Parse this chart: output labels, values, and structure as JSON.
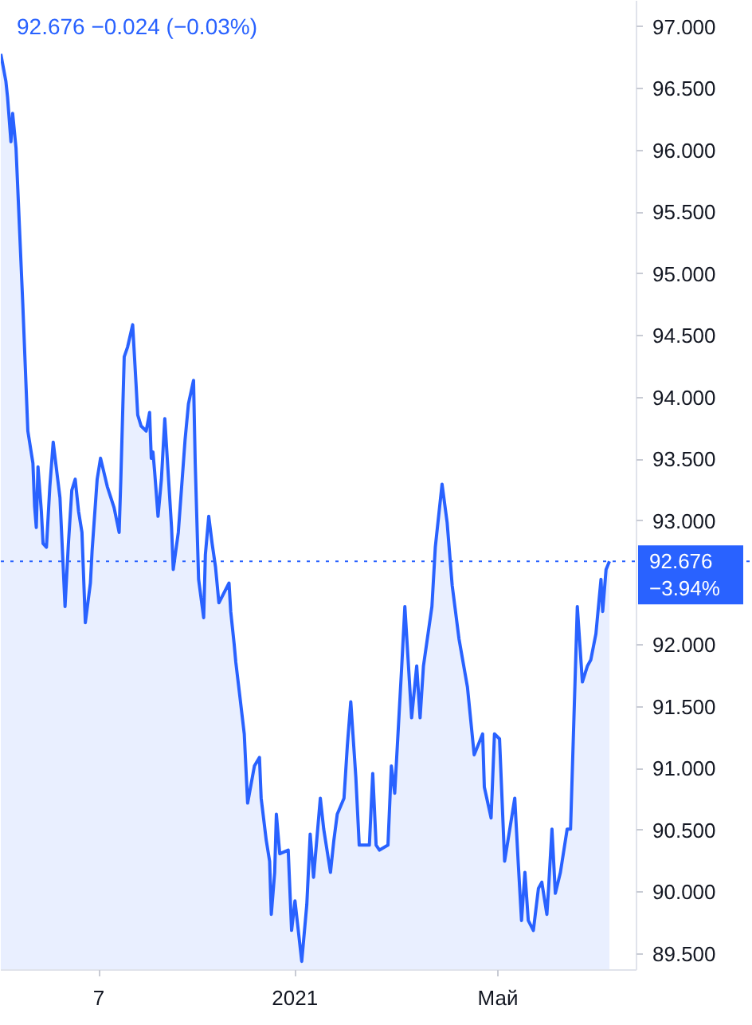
{
  "chart_data": {
    "type": "area",
    "title": "92.676 −0.024 (−0.03%)",
    "color": "#2962ff",
    "x": [
      "2020-07-11",
      "2020-07-14",
      "2020-07-15",
      "2020-07-17",
      "2020-07-18",
      "2020-07-20",
      "2020-07-24",
      "2020-07-27",
      "2020-07-30",
      "2020-07-31",
      "2020-08-01",
      "2020-08-02",
      "2020-08-04",
      "2020-08-05",
      "2020-08-07",
      "2020-08-09",
      "2020-08-11",
      "2020-08-15",
      "2020-08-18",
      "2020-08-20",
      "2020-08-22",
      "2020-08-24",
      "2020-08-26",
      "2020-08-28",
      "2020-08-30",
      "2020-09-02",
      "2020-09-03",
      "2020-09-06",
      "2020-09-08",
      "2020-09-12",
      "2020-09-16",
      "2020-09-19",
      "2020-09-20",
      "2020-09-22",
      "2020-09-24",
      "2020-09-27",
      "2020-09-29",
      "2020-09-30",
      "2020-10-02",
      "2020-10-05",
      "2020-10-07",
      "2020-10-08",
      "2020-10-09",
      "2020-10-10",
      "2020-10-12",
      "2020-10-14",
      "2020-10-16",
      "2020-10-20",
      "2020-10-21",
      "2020-10-24",
      "2020-10-28",
      "2020-10-30",
      "2020-11-02",
      "2020-11-03",
      "2020-11-05",
      "2020-11-08",
      "2020-11-09",
      "2020-11-11",
      "2020-11-13",
      "2020-11-15",
      "2020-11-17",
      "2020-11-23",
      "2020-11-24",
      "2020-11-26",
      "2020-11-27",
      "2020-11-29",
      "2020-12-02",
      "2020-12-04",
      "2020-12-08",
      "2020-12-11",
      "2020-12-12",
      "2020-12-15",
      "2020-12-17",
      "2020-12-18",
      "2020-12-20",
      "2020-12-21",
      "2020-12-23",
      "2020-12-28",
      "2020-12-30",
      "2021-01-01",
      "2021-01-05",
      "2021-01-08",
      "2021-01-10",
      "2021-01-12",
      "2021-01-16",
      "2021-01-18",
      "2021-01-22",
      "2021-01-24",
      "2021-01-26",
      "2021-01-30",
      "2021-02-01",
      "2021-02-03",
      "2021-02-06",
      "2021-02-08",
      "2021-02-14",
      "2021-02-16",
      "2021-02-18",
      "2021-02-20",
      "2021-02-25",
      "2021-02-27",
      "2021-03-01",
      "2021-03-05",
      "2021-03-07",
      "2021-03-11",
      "2021-03-14",
      "2021-03-16",
      "2021-03-18",
      "2021-03-23",
      "2021-03-25",
      "2021-03-29",
      "2021-04-01",
      "2021-04-04",
      "2021-04-08",
      "2021-04-13",
      "2021-04-17",
      "2021-04-22",
      "2021-04-23",
      "2021-04-27",
      "2021-04-29",
      "2021-05-02",
      "2021-05-05",
      "2021-05-11",
      "2021-05-13",
      "2021-05-15",
      "2021-05-17",
      "2021-05-19",
      "2021-05-22",
      "2021-05-25",
      "2021-05-27",
      "2021-05-30",
      "2021-05-31",
      "2021-06-02",
      "2021-06-04",
      "2021-06-07",
      "2021-06-11",
      "2021-06-13",
      "2021-06-15",
      "2021-06-17",
      "2021-06-20",
      "2021-06-23",
      "2021-06-25",
      "2021-06-28",
      "2021-07-01",
      "2021-07-02",
      "2021-07-04",
      "2021-07-06"
    ],
    "values": [
      96.78,
      96.56,
      96.43,
      96.07,
      96.3,
      96.02,
      94.76,
      93.73,
      93.47,
      93.12,
      92.95,
      93.44,
      93.08,
      92.82,
      92.79,
      93.28,
      93.64,
      93.19,
      92.31,
      92.82,
      93.25,
      93.34,
      93.08,
      92.91,
      92.18,
      92.5,
      92.76,
      93.34,
      93.51,
      93.28,
      93.11,
      92.91,
      93.34,
      94.33,
      94.41,
      94.59,
      94.11,
      93.86,
      93.77,
      93.73,
      93.88,
      93.51,
      93.56,
      93.4,
      93.04,
      93.34,
      93.83,
      92.95,
      92.61,
      92.91,
      93.66,
      93.95,
      94.14,
      93.47,
      92.53,
      92.22,
      92.73,
      93.04,
      92.82,
      92.63,
      92.34,
      92.5,
      92.27,
      92.01,
      91.86,
      91.63,
      91.28,
      90.72,
      91.02,
      91.09,
      90.76,
      90.42,
      90.25,
      89.82,
      90.16,
      90.63,
      90.31,
      90.34,
      89.69,
      89.93,
      89.44,
      89.9,
      90.47,
      90.12,
      90.76,
      90.51,
      90.16,
      90.42,
      90.63,
      90.76,
      91.19,
      91.54,
      90.93,
      90.38,
      90.38,
      90.96,
      90.38,
      90.34,
      90.38,
      91.02,
      90.8,
      91.79,
      92.31,
      91.41,
      91.83,
      91.41,
      91.83,
      92.31,
      92.79,
      93.3,
      92.99,
      92.48,
      92.05,
      91.66,
      91.11,
      91.28,
      90.85,
      90.6,
      91.28,
      91.24,
      90.25,
      90.76,
      90.25,
      89.77,
      90.16,
      89.77,
      89.69,
      90.03,
      90.08,
      89.82,
      90.03,
      90.51,
      89.99,
      90.16,
      90.51,
      90.51,
      91.41,
      92.31,
      91.7,
      91.83,
      91.88,
      92.09,
      92.53,
      92.27,
      92.61,
      92.676
    ],
    "xlim": [
      "2020-07-11",
      "2021-07-22"
    ],
    "xticks": [
      {
        "value": "2020-09-07",
        "label": "7"
      },
      {
        "value": "2021-01-01",
        "label": "2021"
      },
      {
        "value": "2021-05-01",
        "label": "Май"
      }
    ],
    "ylim": [
      89.37,
      97.21
    ],
    "yticks": [
      {
        "value": 89.5,
        "label": "89.500"
      },
      {
        "value": 90,
        "label": "90.000"
      },
      {
        "value": 90.5,
        "label": "90.500"
      },
      {
        "value": 91,
        "label": "91.000"
      },
      {
        "value": 91.5,
        "label": "91.500"
      },
      {
        "value": 92,
        "label": "92.000"
      },
      {
        "value": 93,
        "label": "93.000"
      },
      {
        "value": 93.5,
        "label": "93.500"
      },
      {
        "value": 94,
        "label": "94.000"
      },
      {
        "value": 94.5,
        "label": "94.500"
      },
      {
        "value": 95,
        "label": "95.000"
      },
      {
        "value": 95.5,
        "label": "95.500"
      },
      {
        "value": 96,
        "label": "96.000"
      },
      {
        "value": 96.5,
        "label": "96.500"
      },
      {
        "value": 97,
        "label": "97.000"
      }
    ],
    "ref_lines": [
      {
        "axis": "y",
        "value": 92.676,
        "label": "92.676\n−3.94%",
        "color": "#2962ff",
        "line_style": "dotted"
      }
    ],
    "grid": false
  }
}
